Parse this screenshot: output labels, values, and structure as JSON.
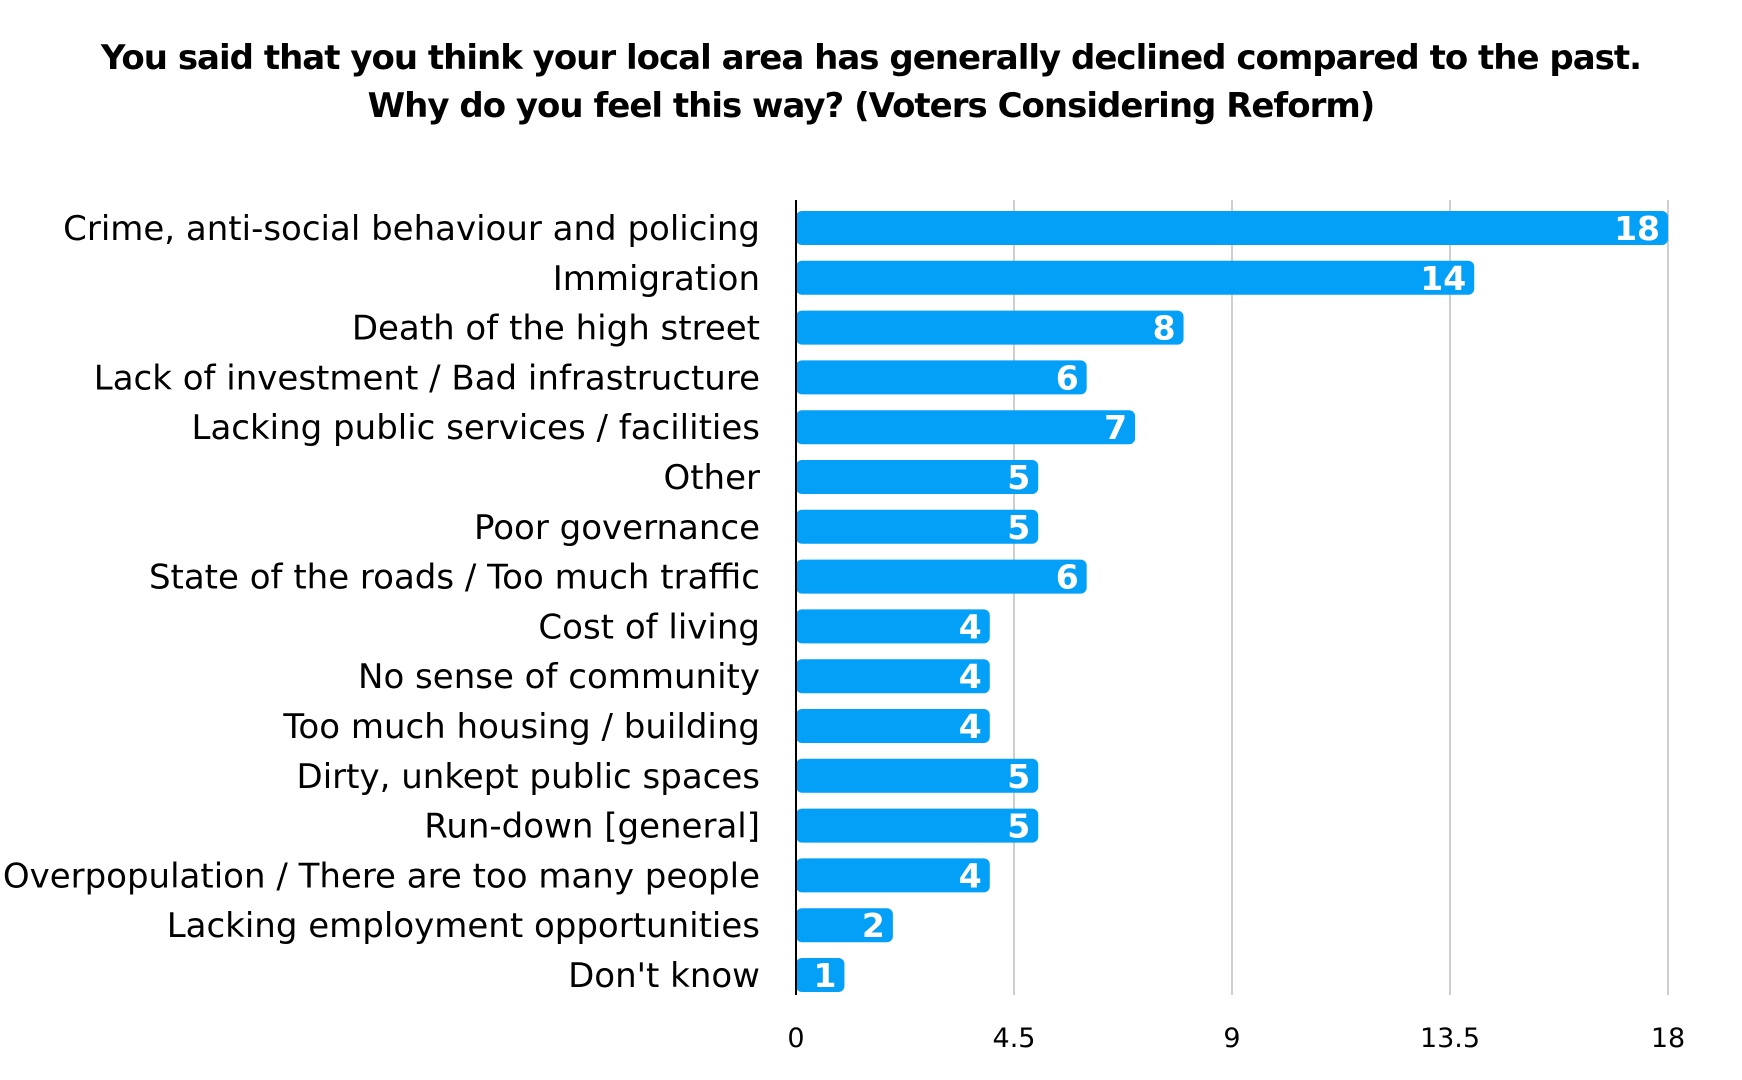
{
  "chart_data": {
    "type": "bar",
    "orientation": "horizontal",
    "title_lines": [
      "You said that you think your local area has generally declined compared to the past.",
      "Why do you feel this way? (Voters Considering Reform)"
    ],
    "categories": [
      "Crime, anti-social behaviour and policing",
      "Immigration",
      "Death of the high street",
      "Lack of investment / Bad infrastructure",
      "Lacking public services / facilities",
      "Other",
      "Poor governance",
      "State of the roads / Too much traffic",
      "Cost of living",
      "No sense of community",
      "Too much housing / building",
      "Dirty, unkept public spaces",
      "Run-down  [general]",
      "Overpopulation / There are too many people",
      "Lacking employment opportunities",
      "Don't know"
    ],
    "values": [
      18,
      14,
      8,
      6,
      7,
      5,
      5,
      6,
      4,
      4,
      4,
      5,
      5,
      4,
      2,
      1
    ],
    "value_labels": [
      "18",
      "14",
      "8",
      "6",
      "7",
      "5",
      "5",
      "6",
      "4",
      "4",
      "4",
      "5",
      "5",
      "4",
      "2",
      "1"
    ],
    "xlim": [
      0,
      18
    ],
    "xticks": [
      0,
      4.5,
      9,
      13.5,
      18
    ],
    "xtick_labels": [
      "0",
      "4.5",
      "9",
      "13.5",
      "18"
    ],
    "vertical_grid": true,
    "legend": "none",
    "bar_color": "#049ff7"
  }
}
